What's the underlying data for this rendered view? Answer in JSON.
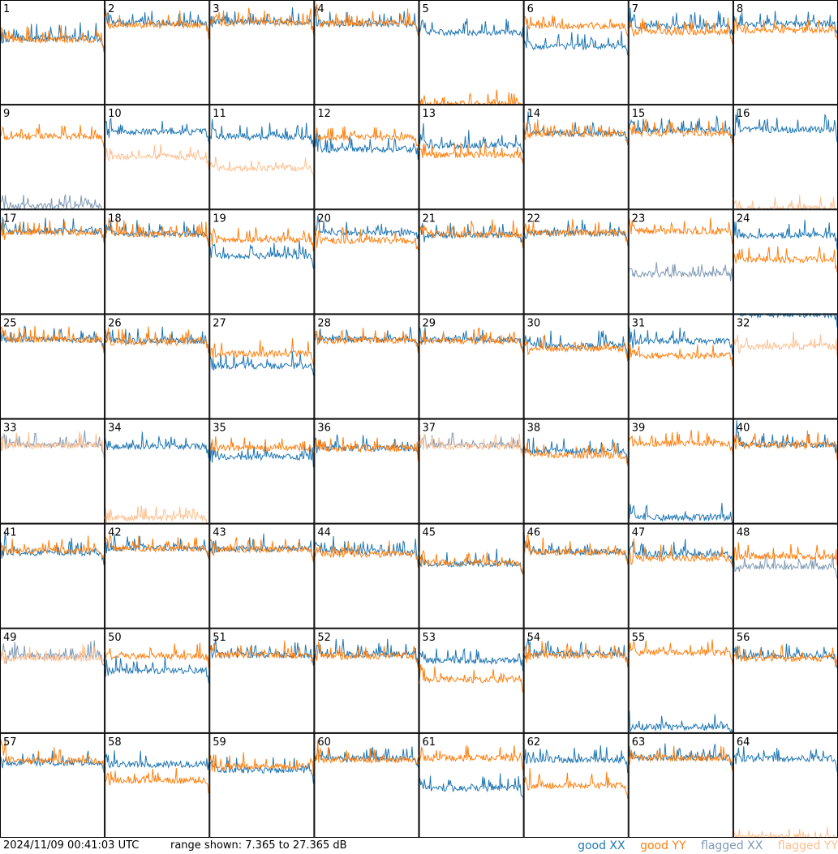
{
  "timestamp": "2024/11/09 00:41:03 UTC",
  "range_text": "range shown: 7.365 to 27.365 dB",
  "legend": {
    "good_xx": "good XX",
    "good_yy": "good YY",
    "flagged_xx": "flagged XX",
    "flagged_yy": "flagged YY"
  },
  "colors": {
    "good_xx": "#1f77b4",
    "good_yy": "#ff7f0e",
    "flagged_xx": "#7f99b4",
    "flagged_yy": "#ffbf8f"
  },
  "chart_data": {
    "type": "line",
    "ylim": [
      7.365,
      27.365
    ],
    "y_unit": "dB",
    "grid_rows": 8,
    "grid_cols": 8,
    "panels": [
      {
        "id": "1",
        "xx": "good",
        "yy": "good",
        "xx_level": 20,
        "yy_level": 19.8
      },
      {
        "id": "2",
        "xx": "good",
        "yy": "good",
        "xx_level": 23,
        "yy_level": 22.6
      },
      {
        "id": "3",
        "xx": "good",
        "yy": "good",
        "xx_level": 23.2,
        "yy_level": 23
      },
      {
        "id": "4",
        "xx": "good",
        "yy": "good",
        "xx_level": 22.8,
        "yy_level": 22.9
      },
      {
        "id": "5",
        "xx": "good",
        "yy": "good",
        "xx_level": 21.2,
        "yy_level": 7.5
      },
      {
        "id": "6",
        "xx": "good",
        "yy": "good",
        "xx_level": 18.5,
        "yy_level": 22.4
      },
      {
        "id": "7",
        "xx": "good",
        "yy": "good",
        "xx_level": 22.4,
        "yy_level": 21.2
      },
      {
        "id": "8",
        "xx": "good",
        "yy": "good",
        "xx_level": 22.8,
        "yy_level": 21.6
      },
      {
        "id": "9",
        "xx": "flagged",
        "yy": "good",
        "xx_level": 8,
        "yy_level": 21.3
      },
      {
        "id": "10",
        "xx": "good",
        "yy": "flagged",
        "xx_level": 22.2,
        "yy_level": 17.4
      },
      {
        "id": "11",
        "xx": "good",
        "yy": "flagged",
        "xx_level": 21.2,
        "yy_level": 15.2
      },
      {
        "id": "12",
        "xx": "good",
        "yy": "good",
        "xx_level": 18.8,
        "yy_level": 21.1
      },
      {
        "id": "13",
        "xx": "good",
        "yy": "good",
        "xx_level": 19.6,
        "yy_level": 17.8
      },
      {
        "id": "14",
        "xx": "good",
        "yy": "good",
        "xx_level": 21.9,
        "yy_level": 21.8
      },
      {
        "id": "15",
        "xx": "good",
        "yy": "good",
        "xx_level": 22.5,
        "yy_level": 21.9
      },
      {
        "id": "16",
        "xx": "good",
        "yy": "flagged",
        "xx_level": 22.6,
        "yy_level": 7.5
      },
      {
        "id": "17",
        "xx": "good",
        "yy": "good",
        "xx_level": 23.2,
        "yy_level": 23.0
      },
      {
        "id": "18",
        "xx": "good",
        "yy": "good",
        "xx_level": 22.7,
        "yy_level": 22.6
      },
      {
        "id": "19",
        "xx": "good",
        "yy": "good",
        "xx_level": 18.5,
        "yy_level": 21.6
      },
      {
        "id": "20",
        "xx": "good",
        "yy": "good",
        "xx_level": 22.9,
        "yy_level": 21.4
      },
      {
        "id": "21",
        "xx": "good",
        "yy": "good",
        "xx_level": 22.5,
        "yy_level": 22.6
      },
      {
        "id": "22",
        "xx": "good",
        "yy": "good",
        "xx_level": 22.8,
        "yy_level": 22.9
      },
      {
        "id": "23",
        "xx": "flagged",
        "yy": "good",
        "xx_level": 15,
        "yy_level": 23.2
      },
      {
        "id": "24",
        "xx": "good",
        "yy": "good",
        "xx_level": 22.4,
        "yy_level": 17.8
      },
      {
        "id": "25",
        "xx": "good",
        "yy": "good",
        "xx_level": 22.5,
        "yy_level": 22.5
      },
      {
        "id": "26",
        "xx": "good",
        "yy": "good",
        "xx_level": 22.3,
        "yy_level": 22.0
      },
      {
        "id": "27",
        "xx": "good",
        "yy": "good",
        "xx_level": 17.5,
        "yy_level": 19.8
      },
      {
        "id": "28",
        "xx": "good",
        "yy": "good",
        "xx_level": 22.6,
        "yy_level": 22.3
      },
      {
        "id": "29",
        "xx": "good",
        "yy": "good",
        "xx_level": 22.5,
        "yy_level": 22.2
      },
      {
        "id": "30",
        "xx": "good",
        "yy": "good",
        "xx_level": 21.4,
        "yy_level": 20.8
      },
      {
        "id": "31",
        "xx": "good",
        "yy": "good",
        "xx_level": 22.2,
        "yy_level": 19.4
      },
      {
        "id": "32",
        "xx": "good",
        "yy": "flagged",
        "xx_level": 27.3,
        "yy_level": 21.2
      },
      {
        "id": "33",
        "xx": "flagged",
        "yy": "flagged",
        "xx_level": 22.4,
        "yy_level": 22.3
      },
      {
        "id": "34",
        "xx": "good",
        "yy": "flagged",
        "xx_level": 22.1,
        "yy_level": 8.5
      },
      {
        "id": "35",
        "xx": "good",
        "yy": "good",
        "xx_level": 20.1,
        "yy_level": 21.8
      },
      {
        "id": "36",
        "xx": "good",
        "yy": "good",
        "xx_level": 21.8,
        "yy_level": 21.7
      },
      {
        "id": "37",
        "xx": "flagged",
        "yy": "flagged",
        "xx_level": 22.3,
        "yy_level": 22.0
      },
      {
        "id": "38",
        "xx": "good",
        "yy": "good",
        "xx_level": 21.2,
        "yy_level": 20.4
      },
      {
        "id": "39",
        "xx": "good",
        "yy": "good",
        "xx_level": 8.5,
        "yy_level": 22.6
      },
      {
        "id": "40",
        "xx": "good",
        "yy": "good",
        "xx_level": 22.4,
        "yy_level": 22.3
      },
      {
        "id": "41",
        "xx": "good",
        "yy": "good",
        "xx_level": 21.8,
        "yy_level": 22.2
      },
      {
        "id": "42",
        "xx": "good",
        "yy": "good",
        "xx_level": 22.7,
        "yy_level": 22.6
      },
      {
        "id": "43",
        "xx": "good",
        "yy": "good",
        "xx_level": 22.5,
        "yy_level": 22.4
      },
      {
        "id": "44",
        "xx": "good",
        "yy": "good",
        "xx_level": 22.0,
        "yy_level": 21.5
      },
      {
        "id": "45",
        "xx": "good",
        "yy": "good",
        "xx_level": 19.7,
        "yy_level": 19.9
      },
      {
        "id": "46",
        "xx": "good",
        "yy": "good",
        "xx_level": 22.0,
        "yy_level": 21.9
      },
      {
        "id": "47",
        "xx": "good",
        "yy": "good",
        "xx_level": 21.5,
        "yy_level": 20.7
      },
      {
        "id": "48",
        "xx": "flagged",
        "yy": "good",
        "xx_level": 19.2,
        "yy_level": 21.1
      },
      {
        "id": "49",
        "xx": "flagged",
        "yy": "flagged",
        "xx_level": 22.0,
        "yy_level": 21.6
      },
      {
        "id": "50",
        "xx": "good",
        "yy": "good",
        "xx_level": 19.3,
        "yy_level": 22.0
      },
      {
        "id": "51",
        "xx": "good",
        "yy": "good",
        "xx_level": 22.3,
        "yy_level": 22.2
      },
      {
        "id": "52",
        "xx": "good",
        "yy": "good",
        "xx_level": 22.4,
        "yy_level": 22.0
      },
      {
        "id": "53",
        "xx": "good",
        "yy": "good",
        "xx_level": 21.2,
        "yy_level": 17.6
      },
      {
        "id": "54",
        "xx": "good",
        "yy": "good",
        "xx_level": 22.5,
        "yy_level": 22.2
      },
      {
        "id": "55",
        "xx": "good",
        "yy": "good",
        "xx_level": 8.5,
        "yy_level": 22.7
      },
      {
        "id": "56",
        "xx": "good",
        "yy": "good",
        "xx_level": 22.1,
        "yy_level": 21.6
      },
      {
        "id": "57",
        "xx": "good",
        "yy": "good",
        "xx_level": 21.7,
        "yy_level": 22.1
      },
      {
        "id": "58",
        "xx": "good",
        "yy": "good",
        "xx_level": 21.4,
        "yy_level": 18.3
      },
      {
        "id": "59",
        "xx": "good",
        "yy": "good",
        "xx_level": 20.3,
        "yy_level": 21.0
      },
      {
        "id": "60",
        "xx": "good",
        "yy": "good",
        "xx_level": 22.5,
        "yy_level": 22.3
      },
      {
        "id": "61",
        "xx": "good",
        "yy": "good",
        "xx_level": 16.8,
        "yy_level": 22.6
      },
      {
        "id": "62",
        "xx": "good",
        "yy": "good",
        "xx_level": 22.3,
        "yy_level": 17.3
      },
      {
        "id": "63",
        "xx": "good",
        "yy": "good",
        "xx_level": 22.7,
        "yy_level": 22.6
      },
      {
        "id": "64",
        "xx": "good",
        "yy": "flagged",
        "xx_level": 22.5,
        "yy_level": 7.5
      }
    ]
  }
}
